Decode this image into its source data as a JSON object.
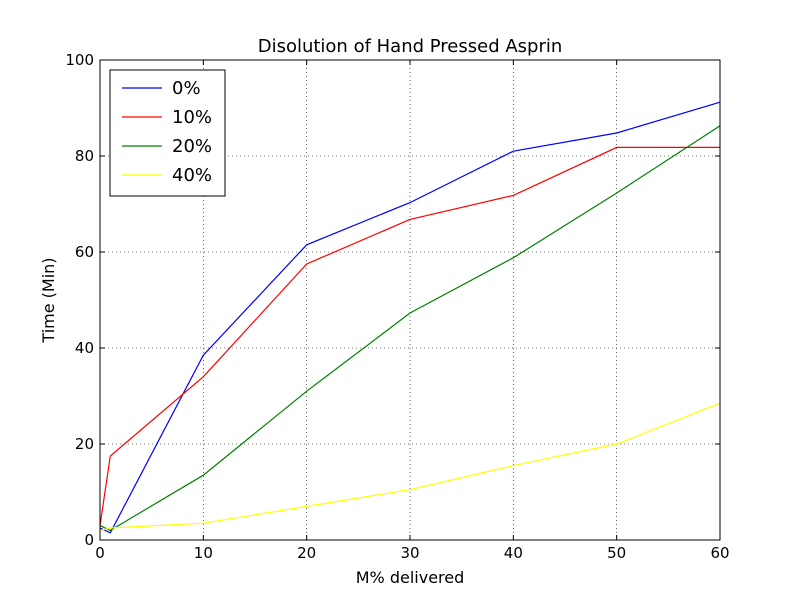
{
  "chart_data": {
    "type": "line",
    "title": "Disolution of Hand Pressed Asprin",
    "xlabel": "M% delivered",
    "ylabel": "Time (Min)",
    "xlim": [
      0,
      60
    ],
    "ylim": [
      0,
      100
    ],
    "xticks": [
      0,
      10,
      20,
      30,
      40,
      50,
      60
    ],
    "yticks": [
      0,
      20,
      40,
      60,
      80,
      100
    ],
    "grid": true,
    "legend_position": "upper-left",
    "series": [
      {
        "name": "0%",
        "color": "#0000ff",
        "x": [
          0,
          1,
          10,
          20,
          30,
          40,
          50,
          60
        ],
        "y": [
          2.5,
          1.5,
          38.5,
          61.5,
          70.3,
          81.0,
          84.8,
          91.2
        ]
      },
      {
        "name": "10%",
        "color": "#ff0000",
        "x": [
          0,
          1,
          10,
          20,
          30,
          40,
          50,
          60
        ],
        "y": [
          3.0,
          17.5,
          34.0,
          57.5,
          66.8,
          71.8,
          81.8,
          81.8
        ]
      },
      {
        "name": "20%",
        "color": "#008000",
        "x": [
          0,
          1,
          10,
          20,
          30,
          40,
          50,
          60
        ],
        "y": [
          3.0,
          2.0,
          13.5,
          31.0,
          47.3,
          58.8,
          72.3,
          86.3
        ]
      },
      {
        "name": "40%",
        "color": "#ffff00",
        "x": [
          0,
          1,
          10,
          20,
          30,
          40,
          50,
          60
        ],
        "y": [
          2.0,
          2.5,
          3.5,
          7.0,
          10.5,
          15.5,
          20.0,
          28.5
        ]
      }
    ]
  }
}
